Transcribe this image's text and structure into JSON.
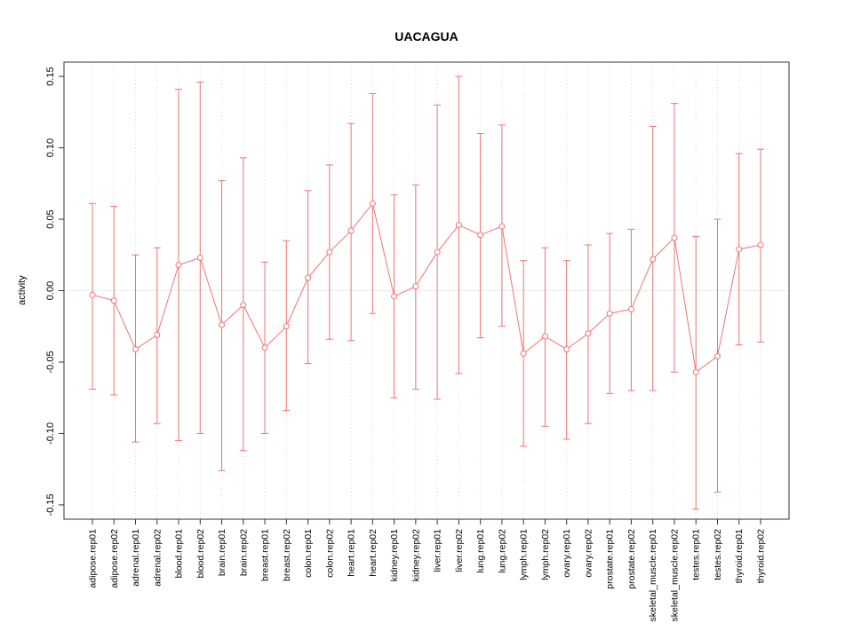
{
  "chart_data": {
    "type": "scatter",
    "title": "UACAGUA",
    "xlabel": "",
    "ylabel": "activity",
    "ylim": [
      -0.16,
      0.16
    ],
    "yticks": [
      -0.15,
      -0.1,
      -0.05,
      0.0,
      0.05,
      0.1,
      0.15
    ],
    "grid": "vertical-dotted",
    "legend": "none",
    "point_style": "open-circle",
    "point_color": "#f07373",
    "grid_color": "#d9d9d9",
    "zero_line_color": "#ededed",
    "axis_color": "#333333",
    "categories": [
      "adipose.rep01",
      "adipose.rep02",
      "adrenal.rep01",
      "adrenal.rep02",
      "blood.rep01",
      "blood.rep02",
      "brain.rep01",
      "brain.rep02",
      "breast.rep01",
      "breast.rep02",
      "colon.rep01",
      "colon.rep02",
      "heart.rep01",
      "heart.rep02",
      "kidney.rep01",
      "kidney.rep02",
      "liver.rep01",
      "liver.rep02",
      "lung.rep01",
      "lung.rep02",
      "lymph.rep01",
      "lymph.rep02",
      "ovary.rep01",
      "ovary.rep02",
      "prostate.rep01",
      "prostate.rep02",
      "skeletal_muscle.rep01",
      "skeletal_muscle.rep02",
      "testes.rep01",
      "testes.rep02",
      "thyroid.rep01",
      "thyroid.rep02"
    ],
    "series": [
      {
        "name": "activity",
        "values": [
          -0.003,
          -0.007,
          -0.041,
          -0.031,
          0.018,
          0.023,
          -0.024,
          -0.01,
          -0.04,
          -0.025,
          0.009,
          0.027,
          0.042,
          0.061,
          -0.004,
          0.003,
          0.027,
          0.046,
          0.039,
          0.045,
          -0.044,
          -0.032,
          -0.041,
          -0.03,
          -0.016,
          -0.013,
          0.022,
          0.037,
          -0.057,
          -0.046,
          0.029,
          0.032
        ]
      },
      {
        "name": "upper_error",
        "values": [
          0.061,
          0.059,
          0.025,
          0.03,
          0.141,
          0.146,
          0.077,
          0.093,
          0.02,
          0.035,
          0.07,
          0.088,
          0.117,
          0.138,
          0.067,
          0.074,
          0.13,
          0.15,
          0.11,
          0.116,
          0.021,
          0.03,
          0.021,
          0.032,
          0.04,
          0.043,
          0.115,
          0.131,
          0.038,
          0.05,
          0.096,
          0.099
        ]
      },
      {
        "name": "lower_error",
        "values": [
          -0.069,
          -0.073,
          -0.106,
          -0.093,
          -0.105,
          -0.1,
          -0.126,
          -0.112,
          -0.1,
          -0.084,
          -0.051,
          -0.034,
          -0.035,
          -0.016,
          -0.075,
          -0.069,
          -0.076,
          -0.058,
          -0.033,
          -0.025,
          -0.109,
          -0.095,
          -0.104,
          -0.093,
          -0.072,
          -0.07,
          -0.07,
          -0.057,
          -0.153,
          -0.141,
          -0.038,
          -0.036
        ]
      }
    ]
  }
}
